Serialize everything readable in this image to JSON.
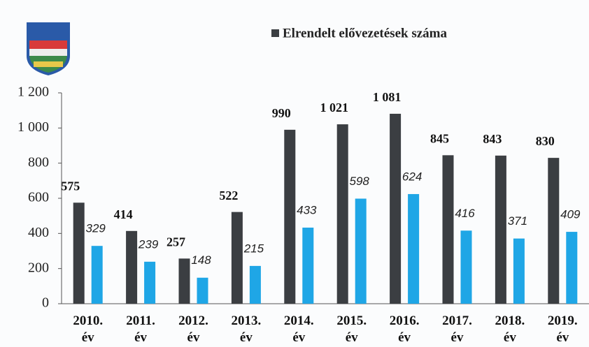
{
  "chart_data": {
    "type": "bar",
    "categories": [
      "2010. év",
      "2011. év",
      "2012. év",
      "2013. év",
      "2014. év",
      "2015. év",
      "2016. év",
      "2017. év",
      "2018. év",
      "2019. év"
    ],
    "series": [
      {
        "name": "Elrendelt elővezetések száma",
        "color": "#3b3e42",
        "values": [
          575,
          414,
          257,
          522,
          990,
          1021,
          1081,
          845,
          843,
          830
        ],
        "value_labels": [
          "575",
          "414",
          "257",
          "522",
          "990",
          "1 021",
          "1 081",
          "845",
          "843",
          "830"
        ]
      },
      {
        "color": "#1fa6e6",
        "values": [
          329,
          239,
          148,
          215,
          433,
          598,
          624,
          416,
          371,
          409
        ]
      }
    ],
    "ylim": [
      0,
      1200
    ],
    "yticks": [
      0,
      200,
      400,
      600,
      800,
      {
        "value": 1000,
        "label": "1 000"
      },
      {
        "value": 1200,
        "label": "1 200"
      }
    ],
    "legend": "top"
  }
}
